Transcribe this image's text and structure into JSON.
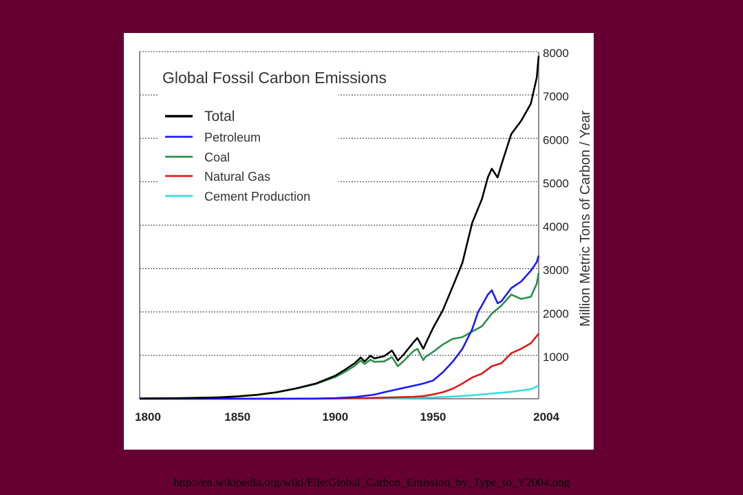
{
  "slide": {
    "source_url": "http://en.wikipedia.org/wiki/File:Global_Carbon_Emission_by_Type_to_Y2004.png",
    "background_color": "#660033"
  },
  "chart_data": {
    "type": "line",
    "title": "Global Fossil Carbon Emissions",
    "xlabel": "",
    "ylabel": "Million Metric Tons of Carbon / Year",
    "xlim": [
      1800,
      2004
    ],
    "ylim": [
      0,
      8000
    ],
    "x_ticks": [
      "1800",
      "1850",
      "1900",
      "1950",
      "2004"
    ],
    "y_ticks": [
      "1000",
      "2000",
      "3000",
      "4000",
      "5000",
      "6000",
      "7000",
      "8000"
    ],
    "grid": "horizontal dotted",
    "legend_position": "top-left",
    "series": [
      {
        "name": "Total",
        "color": "#000000",
        "x": [
          1800,
          1820,
          1840,
          1850,
          1860,
          1870,
          1880,
          1890,
          1900,
          1905,
          1910,
          1913,
          1915,
          1918,
          1920,
          1925,
          1929,
          1932,
          1935,
          1940,
          1942,
          1945,
          1946,
          1950,
          1955,
          1960,
          1965,
          1970,
          1975,
          1978,
          1980,
          1983,
          1985,
          1990,
          1995,
          2000,
          2003,
          2004
        ],
        "values": [
          8,
          12,
          30,
          54,
          90,
          150,
          240,
          350,
          530,
          670,
          820,
          950,
          860,
          990,
          930,
          980,
          1110,
          880,
          1020,
          1300,
          1400,
          1150,
          1250,
          1630,
          2040,
          2580,
          3130,
          4050,
          4600,
          5100,
          5300,
          5100,
          5400,
          6100,
          6400,
          6800,
          7400,
          7900
        ]
      },
      {
        "name": "Petroleum",
        "color": "#1a1aff",
        "x": [
          1800,
          1870,
          1890,
          1900,
          1910,
          1920,
          1925,
          1930,
          1935,
          1940,
          1945,
          1950,
          1955,
          1960,
          1965,
          1970,
          1973,
          1975,
          1978,
          1980,
          1983,
          1985,
          1990,
          1995,
          2000,
          2003,
          2004
        ],
        "values": [
          0,
          1,
          5,
          15,
          40,
          95,
          150,
          200,
          250,
          300,
          350,
          420,
          610,
          850,
          1150,
          1600,
          2000,
          2150,
          2400,
          2500,
          2200,
          2250,
          2550,
          2700,
          2950,
          3150,
          3300
        ]
      },
      {
        "name": "Coal",
        "color": "#2a8f4a",
        "x": [
          1800,
          1820,
          1840,
          1850,
          1860,
          1870,
          1880,
          1890,
          1900,
          1905,
          1910,
          1913,
          1915,
          1918,
          1920,
          1925,
          1929,
          1932,
          1935,
          1940,
          1942,
          1945,
          1946,
          1950,
          1955,
          1960,
          1965,
          1970,
          1975,
          1980,
          1985,
          1990,
          1995,
          2000,
          2003,
          2004
        ],
        "values": [
          8,
          12,
          30,
          54,
          90,
          148,
          235,
          340,
          500,
          620,
          760,
          880,
          800,
          900,
          850,
          860,
          960,
          750,
          870,
          1100,
          1150,
          890,
          960,
          1080,
          1250,
          1380,
          1420,
          1550,
          1670,
          1960,
          2150,
          2400,
          2300,
          2350,
          2650,
          2900
        ]
      },
      {
        "name": "Natural Gas",
        "color": "#e01818",
        "x": [
          1800,
          1890,
          1900,
          1920,
          1940,
          1945,
          1950,
          1955,
          1960,
          1965,
          1970,
          1975,
          1980,
          1985,
          1990,
          1995,
          2000,
          2004
        ],
        "values": [
          0,
          2,
          5,
          20,
          45,
          60,
          100,
          150,
          230,
          350,
          490,
          580,
          750,
          820,
          1050,
          1150,
          1280,
          1500
        ]
      },
      {
        "name": "Cement Production",
        "color": "#33dddd",
        "x": [
          1800,
          1920,
          1940,
          1950,
          1960,
          1970,
          1980,
          1990,
          2000,
          2004
        ],
        "values": [
          0,
          5,
          20,
          30,
          50,
          80,
          120,
          160,
          220,
          300
        ]
      }
    ]
  }
}
